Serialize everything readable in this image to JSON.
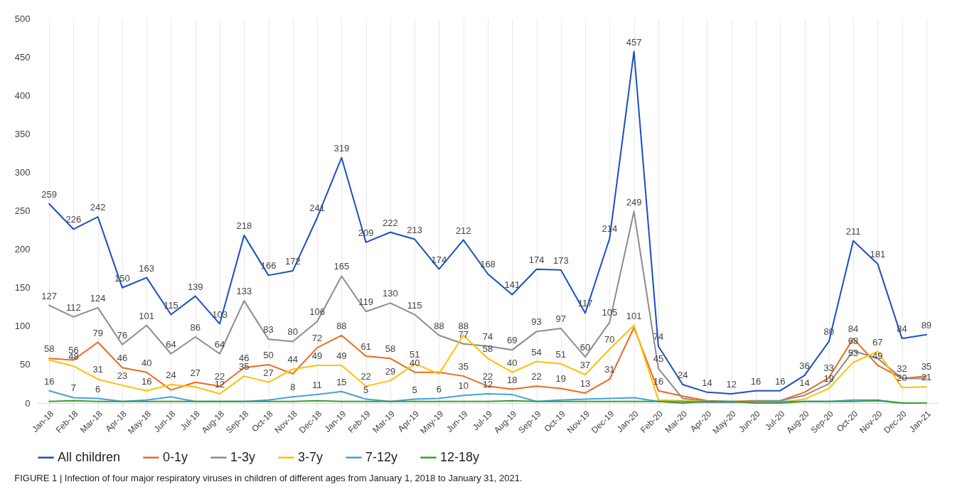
{
  "chart_data": {
    "type": "line",
    "categories": [
      "Jan-18",
      "Feb-18",
      "Mar-18",
      "Apr-18",
      "May-18",
      "Jun-18",
      "Jul-18",
      "Aug-18",
      "Sep-18",
      "Oct-18",
      "Nov-18",
      "Dec-18",
      "Jan-19",
      "Feb-19",
      "Mar-19",
      "Apr-19",
      "May-19",
      "Jun-19",
      "Jul-19",
      "Aug-19",
      "Sep-19",
      "Oct-19",
      "Nov-19",
      "Dec-19",
      "Jan-20",
      "Feb-20",
      "Mar-20",
      "Apr-20",
      "May-20",
      "Jun-20",
      "Jul-20",
      "Aug-20",
      "Sep-20",
      "Oct-20",
      "Nov-20",
      "Dec-20",
      "Jan-21"
    ],
    "series": [
      {
        "name": "All children",
        "color": "#1a4fc4",
        "values": [
          259,
          226,
          242,
          150,
          163,
          115,
          139,
          103,
          218,
          166,
          172,
          241,
          319,
          209,
          222,
          213,
          174,
          212,
          168,
          141,
          174,
          173,
          117,
          214,
          457,
          74,
          24,
          14,
          12,
          16,
          16,
          36,
          80,
          211,
          181,
          84,
          89
        ],
        "value_labels": [
          "259",
          "226",
          "242",
          "150",
          "163",
          "115",
          "139",
          "103",
          "218",
          "166",
          "172",
          "241",
          "319",
          "209",
          "222",
          "213",
          "174",
          "212",
          "168",
          "141",
          "174",
          "173",
          "117",
          "214",
          "457",
          "74",
          "24",
          "14",
          "12",
          "16",
          "16",
          "36",
          "80",
          "211",
          "181",
          "84",
          "89"
        ]
      },
      {
        "name": "0-1y",
        "color": "#ed6a1f",
        "values": [
          58,
          56,
          79,
          46,
          40,
          17,
          27,
          22,
          46,
          50,
          38,
          72,
          88,
          61,
          58,
          40,
          40,
          35,
          22,
          18,
          22,
          19,
          13,
          31,
          98,
          16,
          9,
          3,
          2,
          3,
          3,
          14,
          33,
          84,
          49,
          32,
          35
        ],
        "value_labels": [
          "58",
          "56",
          "79",
          "46",
          "40",
          null,
          "27",
          "22",
          "46",
          "50",
          null,
          "72",
          "88",
          "61",
          "58",
          "40",
          null,
          "35",
          "22",
          "18",
          "22",
          "19",
          "13",
          "31",
          null,
          "16",
          null,
          null,
          null,
          null,
          null,
          "14",
          "33",
          "84",
          "49",
          null,
          "35"
        ]
      },
      {
        "name": "1-3y",
        "color": "#8c8c8c",
        "values": [
          127,
          112,
          124,
          76,
          101,
          64,
          86,
          64,
          133,
          83,
          80,
          106,
          165,
          119,
          130,
          115,
          88,
          77,
          74,
          69,
          93,
          97,
          60,
          105,
          249,
          45,
          6,
          2,
          1,
          2,
          3,
          10,
          25,
          68,
          58,
          32,
          32
        ],
        "value_labels": [
          "127",
          "112",
          "124",
          "76",
          "101",
          "64",
          "86",
          "64",
          "133",
          "83",
          "80",
          "106",
          "165",
          "119",
          "130",
          "115",
          "88",
          "77",
          "74",
          "69",
          "93",
          "97",
          "60",
          "105",
          "249",
          "45",
          null,
          null,
          null,
          null,
          null,
          null,
          null,
          "68",
          null,
          "32",
          null
        ]
      },
      {
        "name": "3-7y",
        "color": "#ffc000",
        "values": [
          56,
          48,
          31,
          23,
          16,
          24,
          21,
          12,
          35,
          27,
          44,
          49,
          49,
          22,
          29,
          51,
          38,
          88,
          58,
          40,
          54,
          51,
          37,
          70,
          101,
          4,
          3,
          2,
          1,
          1,
          1,
          5,
          19,
          53,
          67,
          20,
          21
        ],
        "value_labels": [
          null,
          "48",
          "31",
          "23",
          "16",
          "24",
          null,
          "12",
          "35",
          "27",
          "44",
          "49",
          "49",
          "22",
          "29",
          "51",
          null,
          "88",
          "58",
          "40",
          "54",
          "51",
          "37",
          "70",
          "101",
          null,
          null,
          null,
          null,
          null,
          null,
          null,
          "19",
          "53",
          "67",
          "20",
          "21"
        ]
      },
      {
        "name": "7-12y",
        "color": "#4a9ee0",
        "values": [
          16,
          7,
          6,
          2,
          4,
          8,
          2,
          2,
          2,
          4,
          8,
          11,
          15,
          5,
          2,
          5,
          6,
          10,
          12,
          11,
          2,
          4,
          5,
          6,
          7,
          2,
          2,
          1,
          1,
          2,
          2,
          2,
          2,
          4,
          4,
          0,
          0
        ],
        "value_labels": [
          "16",
          "7",
          "6",
          null,
          null,
          null,
          null,
          null,
          null,
          null,
          "8",
          "11",
          "15",
          "5",
          null,
          "5",
          "6",
          "10",
          "12",
          null,
          null,
          null,
          null,
          null,
          null,
          null,
          null,
          null,
          null,
          null,
          null,
          null,
          null,
          null,
          null,
          null,
          null
        ]
      },
      {
        "name": "12-18y",
        "color": "#3aa02e",
        "values": [
          2,
          3,
          2,
          2,
          2,
          2,
          2,
          2,
          2,
          2,
          2,
          3,
          2,
          2,
          2,
          2,
          2,
          2,
          2,
          3,
          2,
          2,
          2,
          2,
          2,
          2,
          0,
          2,
          2,
          0,
          0,
          2,
          2,
          2,
          3,
          0,
          0
        ]
      }
    ],
    "ylim": [
      0,
      500
    ],
    "yticks": [
      0,
      50,
      100,
      150,
      200,
      250,
      300,
      350,
      400,
      450,
      500
    ],
    "grid": "x",
    "legend": "bottom",
    "annotations": [
      "FIGURE 1 | Infection of four major respiratory viruses in children of different ages from January 1, 2018 to January 31, 2021."
    ]
  }
}
